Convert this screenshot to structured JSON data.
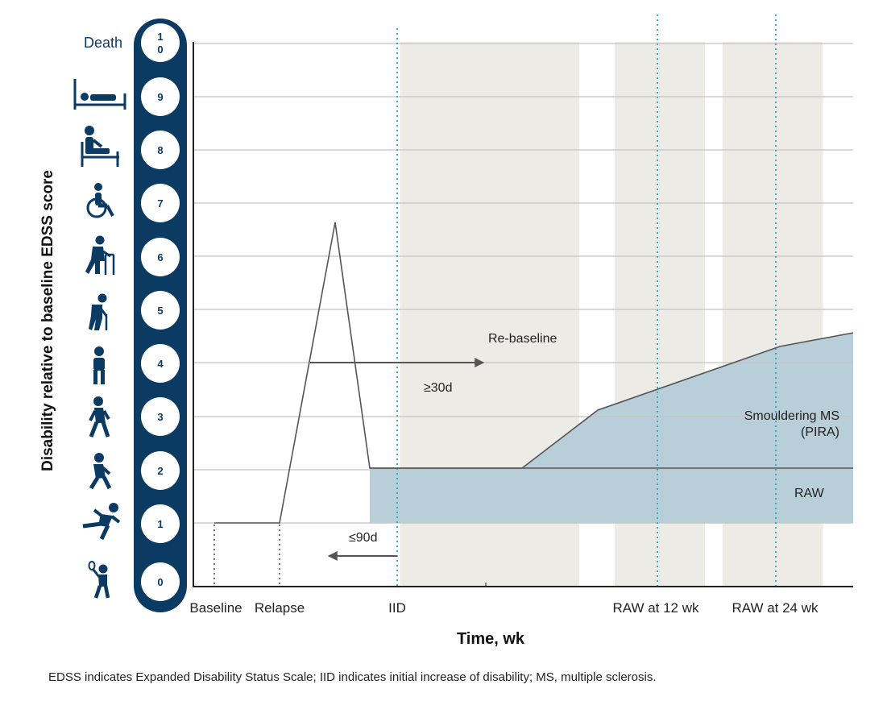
{
  "y_axis_label": "Disability relative to baseline EDSS score",
  "x_axis_label": "Time, wk",
  "death_label": "Death",
  "edss_scale": [
    "0",
    "1",
    "2",
    "3",
    "4",
    "5",
    "6",
    "7",
    "8",
    "9",
    "1\n0"
  ],
  "icons": [
    "person-with-racket-icon",
    "running-person-icon",
    "limping-walking-person-icon",
    "walking-person-icon",
    "standing-person-icon",
    "person-with-cane-icon",
    "person-with-walker-icon",
    "wheelchair-icon",
    "person-sitting-in-bed-icon",
    "person-lying-in-bed-icon"
  ],
  "x_ticks": {
    "baseline": "Baseline",
    "relapse": "Relapse",
    "iid": "IID",
    "raw12": "RAW at 12 wk",
    "raw24": "RAW at 24 wk"
  },
  "annotations": {
    "rebaseline": "Re-baseline",
    "ge30d": "≥30d",
    "le90d": "≤90d",
    "smouldering_line1": "Smouldering MS",
    "smouldering_line2": "(PIRA)",
    "raw": "RAW"
  },
  "footnote": "EDSS indicates Expanded Disability Status Scale; IID indicates initial increase of disability; MS, multiple sclerosis.",
  "colors": {
    "navy": "#0b3a63",
    "shaded_band": "#ecebe5",
    "raw_fill": "#b8ced8",
    "grid": "#c4c4c4",
    "dotted_teal": "#2aa8c0",
    "line": "#555555"
  },
  "chart_data": {
    "type": "line",
    "y_scale": "EDSS score",
    "ylim": [
      0,
      10
    ],
    "grid": true,
    "x_events": [
      "Baseline",
      "Relapse",
      "IID",
      "RAW at 12 wk",
      "RAW at 24 wk"
    ],
    "series": [
      {
        "points": [
          {
            "x": "Baseline",
            "y": 1.0
          },
          {
            "x": "Relapse",
            "y": 1.0
          },
          {
            "x": "peak",
            "y": 6.7
          },
          {
            "x": "after peak",
            "y": 2.0
          },
          {
            "x": "IID",
            "y": 2.0
          },
          {
            "x": "progression start",
            "y": 2.0
          },
          {
            "x": "RAW at 12 wk",
            "y": 3.5
          },
          {
            "x": "RAW at 24 wk",
            "y": 4.3
          },
          {
            "x": "end",
            "y": 4.55
          }
        ]
      }
    ],
    "regions": [
      {
        "label": "RAW",
        "y_range": [
          1,
          2
        ]
      },
      {
        "label": "Smouldering MS (PIRA)",
        "y_range": [
          2,
          4.55
        ]
      }
    ]
  }
}
